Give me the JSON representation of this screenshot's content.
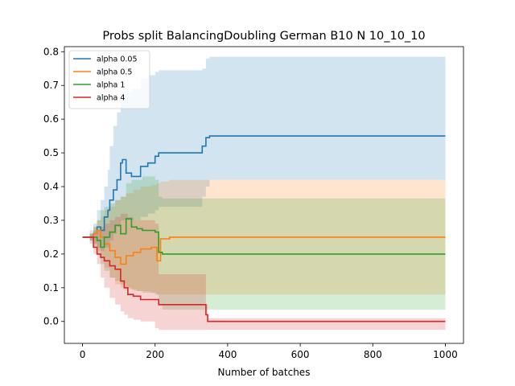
{
  "chart_data": {
    "type": "line",
    "title": "Probs split BalancingDoubling German B10 N 10_10_10",
    "xlabel": "Number of batches",
    "ylabel": "",
    "xlim": [
      -50,
      1050
    ],
    "ylim": [
      -0.065,
      0.815
    ],
    "xticks": [
      0,
      200,
      400,
      600,
      800,
      1000
    ],
    "yticks": [
      0.0,
      0.1,
      0.2,
      0.3,
      0.4,
      0.5,
      0.6,
      0.7,
      0.8
    ],
    "grid": false,
    "legend_position": "top-left",
    "series": [
      {
        "name": "alpha 0.05",
        "color": "#1f77b4",
        "x": [
          0,
          20,
          30,
          40,
          50,
          60,
          70,
          75,
          85,
          95,
          105,
          110,
          120,
          135,
          160,
          180,
          200,
          210,
          330,
          340,
          350,
          1000
        ],
        "y": [
          0.25,
          0.25,
          0.26,
          0.28,
          0.27,
          0.31,
          0.33,
          0.36,
          0.39,
          0.42,
          0.47,
          0.48,
          0.44,
          0.43,
          0.46,
          0.47,
          0.49,
          0.5,
          0.52,
          0.545,
          0.55,
          0.55
        ],
        "lower": [
          0.25,
          0.24,
          0.23,
          0.22,
          0.21,
          0.22,
          0.22,
          0.24,
          0.26,
          0.28,
          0.3,
          0.3,
          0.3,
          0.3,
          0.31,
          0.32,
          0.33,
          0.34,
          0.37,
          0.4,
          0.42,
          0.42
        ],
        "upper": [
          0.25,
          0.27,
          0.29,
          0.33,
          0.36,
          0.4,
          0.45,
          0.52,
          0.58,
          0.62,
          0.65,
          0.67,
          0.68,
          0.69,
          0.72,
          0.73,
          0.74,
          0.745,
          0.75,
          0.78,
          0.785,
          0.785
        ]
      },
      {
        "name": "alpha 0.5",
        "color": "#ff7f0e",
        "x": [
          0,
          20,
          30,
          40,
          50,
          60,
          75,
          90,
          105,
          120,
          140,
          160,
          190,
          205,
          215,
          240,
          1000
        ],
        "y": [
          0.25,
          0.25,
          0.26,
          0.27,
          0.25,
          0.23,
          0.21,
          0.19,
          0.17,
          0.195,
          0.205,
          0.215,
          0.22,
          0.18,
          0.245,
          0.25,
          0.25
        ],
        "lower": [
          0.25,
          0.24,
          0.23,
          0.21,
          0.19,
          0.16,
          0.13,
          0.11,
          0.1,
          0.095,
          0.09,
          0.09,
          0.085,
          0.08,
          0.08,
          0.08,
          0.08
        ],
        "upper": [
          0.25,
          0.26,
          0.28,
          0.3,
          0.31,
          0.33,
          0.34,
          0.36,
          0.37,
          0.38,
          0.39,
          0.4,
          0.405,
          0.41,
          0.415,
          0.42,
          0.42
        ]
      },
      {
        "name": "alpha 1",
        "color": "#2ca02c",
        "x": [
          0,
          20,
          30,
          40,
          50,
          60,
          75,
          90,
          105,
          120,
          135,
          150,
          165,
          200,
          210,
          220,
          1000
        ],
        "y": [
          0.25,
          0.25,
          0.25,
          0.24,
          0.22,
          0.25,
          0.265,
          0.285,
          0.26,
          0.305,
          0.28,
          0.275,
          0.27,
          0.265,
          0.205,
          0.2,
          0.2
        ],
        "lower": [
          0.25,
          0.24,
          0.22,
          0.2,
          0.17,
          0.15,
          0.13,
          0.12,
          0.11,
          0.1,
          0.095,
          0.09,
          0.085,
          0.08,
          0.05,
          0.035,
          0.035
        ],
        "upper": [
          0.25,
          0.26,
          0.28,
          0.3,
          0.33,
          0.34,
          0.35,
          0.36,
          0.37,
          0.41,
          0.42,
          0.42,
          0.43,
          0.42,
          0.37,
          0.365,
          0.365
        ]
      },
      {
        "name": "alpha 4",
        "color": "#d62728",
        "x": [
          0,
          20,
          30,
          40,
          50,
          60,
          75,
          90,
          105,
          115,
          125,
          140,
          160,
          200,
          210,
          335,
          340,
          345,
          1000
        ],
        "y": [
          0.25,
          0.25,
          0.22,
          0.2,
          0.19,
          0.18,
          0.165,
          0.155,
          0.12,
          0.1,
          0.08,
          0.075,
          0.065,
          0.065,
          0.05,
          0.05,
          0.02,
          0.0,
          0.0
        ],
        "lower": [
          0.25,
          0.23,
          0.2,
          0.17,
          0.13,
          0.1,
          0.07,
          0.05,
          0.03,
          0.02,
          0.01,
          0.005,
          0.0,
          -0.02,
          -0.025,
          -0.025,
          -0.025,
          -0.025,
          -0.025
        ],
        "upper": [
          0.25,
          0.26,
          0.27,
          0.27,
          0.28,
          0.29,
          0.3,
          0.31,
          0.32,
          0.32,
          0.31,
          0.3,
          0.3,
          0.29,
          0.14,
          0.14,
          0.05,
          0.01,
          0.01
        ]
      }
    ]
  }
}
